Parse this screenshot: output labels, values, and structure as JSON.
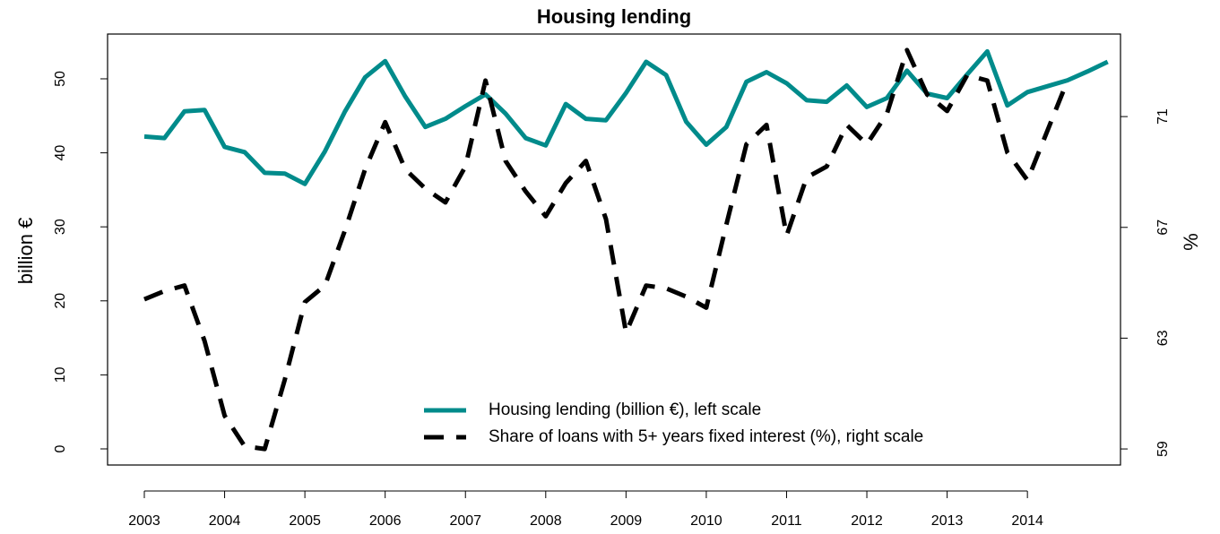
{
  "chart_data": {
    "type": "line",
    "title": "Housing lending",
    "ylabel": "billion €",
    "y2label": "%",
    "categories": [
      "2003",
      null,
      null,
      null,
      "2004",
      null,
      null,
      null,
      "2005",
      null,
      null,
      null,
      "2006",
      null,
      null,
      null,
      "2007",
      null,
      null,
      null,
      "2008",
      null,
      null,
      null,
      "2009",
      null,
      null,
      null,
      "2010",
      null,
      null,
      null,
      "2011",
      null,
      null,
      null,
      "2012",
      null,
      null,
      null,
      "2013",
      null,
      null,
      null,
      "2014",
      null,
      null,
      null,
      null
    ],
    "series": [
      {
        "name": "Housing lending (billion €), left scale",
        "color": "#008b8b",
        "dash": false,
        "values": [
          42.2,
          42.0,
          45.6,
          45.8,
          40.8,
          40.1,
          37.3,
          37.2,
          35.8,
          40.2,
          45.6,
          50.2,
          52.4,
          47.6,
          43.5,
          44.6,
          46.3,
          47.9,
          45.3,
          42.0,
          41.0,
          46.6,
          44.6,
          44.4,
          48.1,
          52.3,
          50.5,
          44.2,
          41.1,
          43.5,
          49.6,
          50.9,
          49.4,
          47.1,
          46.9,
          49.1,
          46.2,
          47.4,
          51.1,
          48.0,
          47.4,
          50.6,
          53.7,
          46.4,
          48.2,
          49.0,
          49.8,
          51.0,
          52.3
        ]
      },
      {
        "name": "Share of loans with 5+ years fixed interest (%), right scale",
        "color": "#000000",
        "dash": true,
        "axis": "y2",
        "values": [
          64.4,
          64.7,
          64.9,
          62.9,
          60.2,
          59.1,
          59.0,
          61.5,
          64.3,
          64.9,
          66.9,
          69.1,
          70.8,
          69.1,
          68.4,
          67.9,
          69.2,
          72.3,
          69.4,
          68.3,
          67.4,
          68.6,
          69.4,
          67.3,
          63.2,
          64.9,
          64.8,
          64.5,
          64.1,
          67.1,
          70.0,
          70.7,
          66.7,
          68.8,
          69.2,
          70.7,
          70.0,
          71.1,
          73.4,
          71.8,
          71.2,
          72.5,
          72.3,
          69.7,
          68.7,
          70.5,
          72.3,
          null,
          null
        ]
      }
    ],
    "ylim": [
      -2.18,
      56.05
    ],
    "yticks": [
      0,
      10,
      20,
      30,
      40,
      50
    ],
    "y2lim": [
      58.42,
      73.98
    ],
    "y2ticks": [
      59,
      63,
      67,
      71
    ],
    "legend": "bottomright",
    "grid": false
  }
}
